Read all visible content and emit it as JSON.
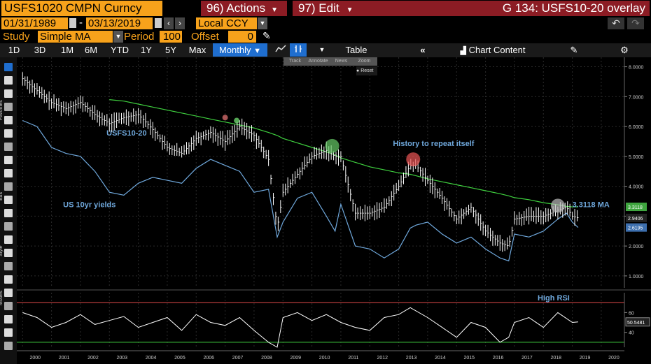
{
  "header": {
    "ticker": "USFS1020 CMPN Curncy",
    "actions_label": "96) Actions",
    "edit_label": "97) Edit",
    "title": "G 134: USFS10-20 overlay",
    "start_date": "01/31/1989",
    "end_date": "03/13/2019",
    "currency": "Local CCY",
    "study_label": "Study",
    "study_value": "Simple MA",
    "period_label": "Period",
    "period_value": "100",
    "offset_label": "Offset",
    "offset_value": "0"
  },
  "toolbar": {
    "ranges": [
      "1D",
      "3D",
      "1M",
      "6M",
      "YTD",
      "1Y",
      "5Y",
      "Max"
    ],
    "frequency": "Monthly",
    "table_label": "Table",
    "chart_content_label": "Chart Content"
  },
  "popup": {
    "items": [
      "Track",
      "Annotate",
      "News",
      "Zoom"
    ],
    "reset_label": "Reset"
  },
  "sidebar_labels": [
    "Favorites",
    "Edit",
    "Style",
    "Modes"
  ],
  "colors": {
    "price_bars": "#ffffff",
    "yields_line": "#6fa8dc",
    "ma_line": "#3fd13f",
    "rsi_line": "#ffffff",
    "rsi_upper": "#e34a4a",
    "rsi_lower": "#3fd13f",
    "price_tag": "#3fa53f",
    "yields_tag": "#3d6fae",
    "ma_tag": "#cfcfcf"
  },
  "chart_data": [
    {
      "type": "line",
      "panel": "main",
      "x": [
        2000.0,
        2000.5,
        2001.0,
        2001.5,
        2002.0,
        2002.5,
        2003.0,
        2003.5,
        2004.0,
        2004.5,
        2005.0,
        2005.5,
        2006.0,
        2006.5,
        2007.0,
        2007.5,
        2008.0,
        2008.5,
        2008.8,
        2009.0,
        2009.5,
        2010.0,
        2010.5,
        2010.8,
        2011.0,
        2011.5,
        2012.0,
        2012.5,
        2013.0,
        2013.4,
        2013.6,
        2014.0,
        2014.5,
        2015.0,
        2015.5,
        2016.0,
        2016.5,
        2016.8,
        2017.0,
        2017.5,
        2018.0,
        2018.5,
        2018.8,
        2019.0,
        2019.2
      ],
      "series": [
        {
          "name": "USFS10-20",
          "values": [
            7.6,
            7.2,
            6.8,
            6.6,
            6.8,
            6.4,
            6.1,
            6.3,
            6.4,
            5.9,
            5.3,
            5.1,
            5.6,
            5.8,
            5.5,
            6.0,
            5.7,
            4.9,
            2.6,
            3.8,
            4.4,
            5.0,
            5.2,
            5.0,
            5.0,
            3.1,
            3.1,
            3.3,
            4.0,
            4.7,
            4.7,
            4.2,
            3.6,
            2.9,
            3.3,
            2.5,
            2.1,
            2.0,
            2.9,
            3.0,
            3.0,
            3.2,
            3.3,
            3.0,
            2.94
          ]
        },
        {
          "name": "US 10yr yields",
          "values": [
            6.2,
            6.0,
            5.3,
            5.1,
            5.0,
            4.5,
            3.8,
            3.7,
            4.1,
            4.3,
            4.2,
            4.1,
            4.6,
            4.9,
            4.7,
            4.5,
            3.8,
            3.9,
            2.3,
            2.8,
            3.6,
            3.8,
            3.0,
            2.5,
            3.4,
            2.0,
            1.9,
            1.6,
            1.9,
            2.6,
            2.7,
            2.8,
            2.4,
            2.1,
            2.3,
            1.9,
            1.6,
            1.5,
            2.4,
            2.3,
            2.5,
            2.9,
            3.1,
            2.8,
            2.62
          ]
        },
        {
          "name": "3.3118 MA",
          "values": [
            null,
            null,
            null,
            null,
            null,
            null,
            6.9,
            6.85,
            6.75,
            6.65,
            6.55,
            6.45,
            6.35,
            6.25,
            6.15,
            6.05,
            5.95,
            5.8,
            5.7,
            5.6,
            5.45,
            5.3,
            5.15,
            5.05,
            4.95,
            4.8,
            4.65,
            4.55,
            4.45,
            4.4,
            4.35,
            4.25,
            4.15,
            4.05,
            3.95,
            3.85,
            3.75,
            3.68,
            3.62,
            3.55,
            3.45,
            3.38,
            3.33,
            3.31,
            3.3118
          ]
        }
      ],
      "ylim": [
        0.6,
        8.2
      ],
      "yticks": [
        "8.0000",
        "7.0000",
        "6.0000",
        "5.0000",
        "4.0000",
        "3.0000",
        "2.0000",
        "1.0000"
      ],
      "last_values": [
        "3.3118",
        "2.9406",
        "2.6195"
      ],
      "annotations": [
        "History to repeat itself",
        "USFS10-20",
        "US 10yr yields",
        "3.3118 MA"
      ]
    },
    {
      "type": "line",
      "panel": "rsi",
      "x": [
        2000.0,
        2000.5,
        2001.0,
        2001.5,
        2002.0,
        2002.5,
        2003.0,
        2003.5,
        2004.0,
        2004.5,
        2005.0,
        2005.5,
        2006.0,
        2006.5,
        2007.0,
        2007.5,
        2008.0,
        2008.5,
        2008.8,
        2009.0,
        2009.5,
        2010.0,
        2010.5,
        2011.0,
        2011.5,
        2012.0,
        2012.5,
        2013.0,
        2013.4,
        2014.0,
        2014.5,
        2015.0,
        2015.5,
        2016.0,
        2016.5,
        2016.8,
        2017.0,
        2017.5,
        2018.0,
        2018.5,
        2019.0,
        2019.2
      ],
      "series": [
        {
          "name": "RSI",
          "values": [
            60,
            55,
            45,
            50,
            58,
            48,
            52,
            56,
            45,
            50,
            55,
            42,
            58,
            50,
            47,
            55,
            42,
            30,
            25,
            55,
            60,
            52,
            58,
            50,
            45,
            42,
            55,
            58,
            65,
            55,
            45,
            35,
            50,
            45,
            30,
            35,
            50,
            55,
            45,
            60,
            50,
            50.5481
          ]
        }
      ],
      "ylim": [
        25,
        80
      ],
      "upper_level": 70,
      "lower_level": 30,
      "yticks": [
        "60",
        "40"
      ],
      "last_value": "50.5481",
      "annotations": [
        "High RSI"
      ]
    }
  ],
  "xaxis": {
    "ticks": [
      "2000",
      "2001",
      "2002",
      "2003",
      "2004",
      "2005",
      "2006",
      "2007",
      "2008",
      "2009",
      "2010",
      "2011",
      "2012",
      "2013",
      "2014",
      "2015",
      "2016",
      "2017",
      "2018",
      "2019",
      "2020"
    ]
  }
}
